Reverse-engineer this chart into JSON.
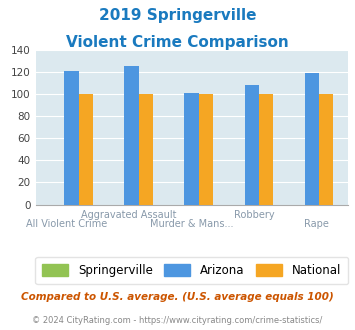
{
  "title_line1": "2019 Springerville",
  "title_line2": "Violent Crime Comparison",
  "title_color": "#1a7abf",
  "categories": [
    "All Violent Crime",
    "Aggravated Assault",
    "Murder & Mans...",
    "Robbery",
    "Rape"
  ],
  "label_top": [
    "",
    "Aggravated Assault",
    "",
    "Robbery",
    ""
  ],
  "label_bottom": [
    "All Violent Crime",
    "",
    "Murder & Mans...",
    "",
    "Rape"
  ],
  "springerville": [
    0,
    0,
    0,
    0,
    0
  ],
  "arizona": [
    121,
    125,
    101,
    108,
    119
  ],
  "national": [
    100,
    100,
    100,
    100,
    100
  ],
  "springerville_color": "#92c353",
  "arizona_color": "#4d96e0",
  "national_color": "#f5a623",
  "ylim": [
    0,
    140
  ],
  "yticks": [
    0,
    20,
    40,
    60,
    80,
    100,
    120,
    140
  ],
  "background_color": "#dce9ef",
  "legend_labels": [
    "Springerville",
    "Arizona",
    "National"
  ],
  "footnote1": "Compared to U.S. average. (U.S. average equals 100)",
  "footnote2": "© 2024 CityRating.com - https://www.cityrating.com/crime-statistics/",
  "footnote1_color": "#cc5500",
  "footnote2_color": "#888888"
}
